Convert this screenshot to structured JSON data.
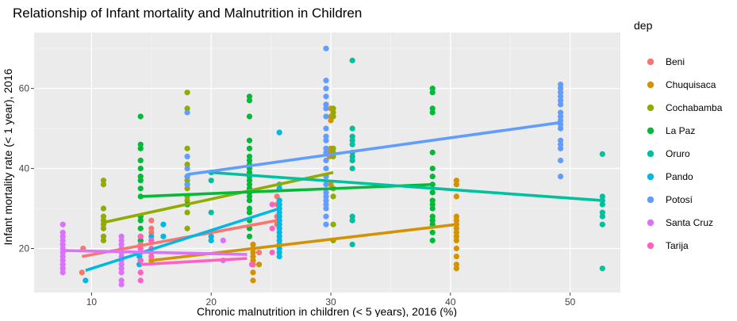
{
  "chart_data": {
    "type": "scatter",
    "title": "Relationship of Infant mortality and Malnutrition in Children",
    "xlabel": "Chronic malnutrition in children (< 5 years), 2016 (%)",
    "ylabel": "Infant mortality rate (< 1 year), 2016",
    "xlim": [
      5.2,
      54.2
    ],
    "ylim": [
      9,
      74
    ],
    "x_ticks": [
      10,
      20,
      30,
      40,
      50
    ],
    "y_ticks": [
      20,
      40,
      60
    ],
    "grid": true,
    "legend_title": "dep",
    "legend_position": "right",
    "series": [
      {
        "name": "Beni",
        "color": "#F8766D",
        "points": [
          [
            9.2,
            14
          ],
          [
            9.3,
            20
          ],
          [
            14.1,
            21
          ],
          [
            14.1,
            22
          ],
          [
            15,
            24
          ],
          [
            15,
            25
          ],
          [
            15,
            27
          ],
          [
            25.5,
            26
          ],
          [
            25.5,
            28
          ],
          [
            25.5,
            31
          ],
          [
            25.5,
            33
          ],
          [
            24,
            19
          ]
        ],
        "trend": [
          [
            9.2,
            18
          ],
          [
            25.5,
            27
          ]
        ]
      },
      {
        "name": "Chuquisaca",
        "color": "#D39200",
        "points": [
          [
            14,
            16
          ],
          [
            15,
            17
          ],
          [
            15,
            19
          ],
          [
            23.5,
            12
          ],
          [
            23.5,
            14
          ],
          [
            23.5,
            16
          ],
          [
            23.5,
            17
          ],
          [
            23.5,
            18
          ],
          [
            23.5,
            19
          ],
          [
            23.5,
            20
          ],
          [
            23.5,
            21
          ],
          [
            24,
            16
          ],
          [
            29.9,
            43
          ],
          [
            29.9,
            44
          ],
          [
            30,
            36
          ],
          [
            30,
            45
          ],
          [
            30,
            52
          ],
          [
            30,
            53
          ],
          [
            30,
            55
          ],
          [
            40.5,
            15
          ],
          [
            40.5,
            16
          ],
          [
            40.5,
            18
          ],
          [
            40.5,
            20
          ],
          [
            40.5,
            22
          ],
          [
            40.5,
            23
          ],
          [
            40.5,
            24
          ],
          [
            40.5,
            25
          ],
          [
            40.5,
            26
          ],
          [
            40.5,
            27
          ],
          [
            40.5,
            28
          ],
          [
            40.5,
            33
          ],
          [
            40.5,
            36
          ],
          [
            40.5,
            37
          ]
        ],
        "trend": [
          [
            15,
            17
          ],
          [
            40.5,
            26
          ]
        ]
      },
      {
        "name": "Cochabamba",
        "color": "#93AA00",
        "points": [
          [
            11,
            22
          ],
          [
            11,
            23
          ],
          [
            11,
            25
          ],
          [
            11,
            26
          ],
          [
            11,
            27
          ],
          [
            11,
            28
          ],
          [
            11,
            30
          ],
          [
            11,
            36
          ],
          [
            11,
            37
          ],
          [
            18,
            25
          ],
          [
            18,
            29
          ],
          [
            18,
            31
          ],
          [
            18,
            32
          ],
          [
            18,
            33
          ],
          [
            18,
            35
          ],
          [
            18,
            37
          ],
          [
            18,
            38
          ],
          [
            18,
            41
          ],
          [
            18,
            45
          ],
          [
            18,
            55
          ],
          [
            18,
            59
          ],
          [
            30.2,
            22
          ],
          [
            30.2,
            26
          ],
          [
            30.2,
            33
          ],
          [
            30.2,
            35
          ],
          [
            30.2,
            43
          ],
          [
            30.2,
            44
          ],
          [
            30.2,
            45
          ],
          [
            30.2,
            53
          ],
          [
            30.2,
            54
          ],
          [
            30.2,
            55
          ]
        ],
        "trend": [
          [
            11,
            26.5
          ],
          [
            30.2,
            39
          ]
        ]
      },
      {
        "name": "La Paz",
        "color": "#00BA38",
        "points": [
          [
            14.1,
            17
          ],
          [
            14.1,
            20
          ],
          [
            14.1,
            22
          ],
          [
            14.1,
            23
          ],
          [
            14.1,
            25
          ],
          [
            14.1,
            27
          ],
          [
            14.1,
            28
          ],
          [
            14.1,
            33
          ],
          [
            14.1,
            35
          ],
          [
            14.1,
            37
          ],
          [
            14.1,
            38
          ],
          [
            14.1,
            40
          ],
          [
            14.1,
            42
          ],
          [
            14.1,
            45
          ],
          [
            14.1,
            46
          ],
          [
            14.1,
            53
          ],
          [
            23.2,
            23
          ],
          [
            23.2,
            25
          ],
          [
            23.2,
            27
          ],
          [
            23.2,
            29
          ],
          [
            23.2,
            30
          ],
          [
            23.2,
            32
          ],
          [
            23.2,
            33
          ],
          [
            23.2,
            34
          ],
          [
            23.2,
            35
          ],
          [
            23.2,
            36
          ],
          [
            23.2,
            37
          ],
          [
            23.2,
            38
          ],
          [
            23.2,
            39
          ],
          [
            23.2,
            40
          ],
          [
            23.2,
            41
          ],
          [
            23.2,
            42
          ],
          [
            23.2,
            43
          ],
          [
            23.2,
            45
          ],
          [
            23.2,
            47
          ],
          [
            23.2,
            53
          ],
          [
            23.2,
            57
          ],
          [
            23.2,
            58
          ],
          [
            18,
            31
          ],
          [
            18,
            36
          ],
          [
            38.5,
            22
          ],
          [
            38.5,
            24
          ],
          [
            38.5,
            26
          ],
          [
            38.5,
            27
          ],
          [
            38.5,
            28
          ],
          [
            38.5,
            30
          ],
          [
            38.5,
            31
          ],
          [
            38.5,
            32
          ],
          [
            38.5,
            34
          ],
          [
            38.5,
            36
          ],
          [
            38.5,
            38
          ],
          [
            38.5,
            40
          ],
          [
            38.5,
            44
          ],
          [
            38.5,
            54
          ],
          [
            38.5,
            55
          ],
          [
            38.5,
            59
          ],
          [
            38.5,
            60
          ]
        ],
        "trend": [
          [
            14.1,
            33
          ],
          [
            38.5,
            36
          ]
        ]
      },
      {
        "name": "Oruro",
        "color": "#00C19F",
        "points": [
          [
            20,
            29
          ],
          [
            20,
            37
          ],
          [
            20,
            39
          ],
          [
            31.8,
            21
          ],
          [
            31.8,
            27
          ],
          [
            31.8,
            28
          ],
          [
            31.8,
            40
          ],
          [
            31.8,
            42
          ],
          [
            31.8,
            43
          ],
          [
            31.8,
            44
          ],
          [
            31.8,
            46
          ],
          [
            31.8,
            47
          ],
          [
            31.8,
            48
          ],
          [
            31.8,
            50
          ],
          [
            31.8,
            67
          ],
          [
            52.7,
            15
          ],
          [
            52.7,
            26
          ],
          [
            52.7,
            28
          ],
          [
            52.7,
            29
          ],
          [
            52.7,
            31
          ],
          [
            52.7,
            32
          ],
          [
            52.7,
            33
          ],
          [
            52.7,
            43.6
          ]
        ],
        "trend": [
          [
            20,
            39
          ],
          [
            52.7,
            32
          ]
        ]
      },
      {
        "name": "Pando",
        "color": "#00B9E3",
        "points": [
          [
            9.5,
            12
          ],
          [
            14,
            16
          ],
          [
            14,
            18
          ],
          [
            15,
            22
          ],
          [
            15,
            23
          ],
          [
            16,
            23
          ],
          [
            16,
            26
          ],
          [
            20,
            22
          ],
          [
            20,
            23
          ],
          [
            25.7,
            18
          ],
          [
            25.7,
            19
          ],
          [
            25.7,
            20
          ],
          [
            25.7,
            21
          ],
          [
            25.7,
            22
          ],
          [
            25.7,
            23
          ],
          [
            25.7,
            24
          ],
          [
            25.7,
            25
          ],
          [
            25.7,
            26
          ],
          [
            25.7,
            27
          ],
          [
            25.7,
            28
          ],
          [
            25.7,
            29
          ],
          [
            25.7,
            30
          ],
          [
            25.7,
            31
          ],
          [
            25.7,
            32
          ],
          [
            25.7,
            35
          ],
          [
            25.7,
            36
          ],
          [
            25.7,
            49
          ]
        ],
        "trend": [
          [
            9.5,
            14.5
          ],
          [
            25.7,
            30
          ]
        ]
      },
      {
        "name": "Potosí",
        "color": "#619CFF",
        "points": [
          [
            18,
            36
          ],
          [
            18,
            38
          ],
          [
            18,
            40
          ],
          [
            18,
            43
          ],
          [
            18,
            54
          ],
          [
            29.6,
            26
          ],
          [
            29.6,
            28
          ],
          [
            29.6,
            30
          ],
          [
            29.6,
            31
          ],
          [
            29.6,
            32
          ],
          [
            29.6,
            33
          ],
          [
            29.6,
            34
          ],
          [
            29.6,
            36
          ],
          [
            29.6,
            38
          ],
          [
            29.6,
            40
          ],
          [
            29.6,
            42
          ],
          [
            29.6,
            44
          ],
          [
            29.6,
            45
          ],
          [
            29.6,
            47
          ],
          [
            29.6,
            48
          ],
          [
            29.6,
            50
          ],
          [
            29.6,
            53
          ],
          [
            29.6,
            55
          ],
          [
            29.6,
            56
          ],
          [
            29.6,
            58
          ],
          [
            29.6,
            60
          ],
          [
            29.6,
            62
          ],
          [
            29.6,
            70
          ],
          [
            49.2,
            38
          ],
          [
            49.2,
            42
          ],
          [
            49.2,
            45
          ],
          [
            49.2,
            46
          ],
          [
            49.2,
            47
          ],
          [
            49.2,
            50
          ],
          [
            49.2,
            51
          ],
          [
            49.2,
            52
          ],
          [
            49.2,
            53
          ],
          [
            49.2,
            54
          ],
          [
            49.2,
            56
          ],
          [
            49.2,
            57
          ],
          [
            49.2,
            58
          ],
          [
            49.2,
            59
          ],
          [
            49.2,
            60
          ],
          [
            49.2,
            61
          ]
        ],
        "trend": [
          [
            18,
            38.5
          ],
          [
            49.2,
            51.5
          ]
        ]
      },
      {
        "name": "Santa Cruz",
        "color": "#DB72FB",
        "points": [
          [
            7.6,
            14
          ],
          [
            7.6,
            15
          ],
          [
            7.6,
            16
          ],
          [
            7.6,
            17
          ],
          [
            7.6,
            18
          ],
          [
            7.6,
            19
          ],
          [
            7.6,
            20
          ],
          [
            7.6,
            21
          ],
          [
            7.6,
            22
          ],
          [
            7.6,
            23
          ],
          [
            7.6,
            24
          ],
          [
            7.6,
            26
          ],
          [
            12.5,
            11
          ],
          [
            12.5,
            12
          ],
          [
            12.5,
            14
          ],
          [
            12.5,
            15
          ],
          [
            12.5,
            16
          ],
          [
            12.5,
            17
          ],
          [
            12.5,
            18
          ],
          [
            12.5,
            19
          ],
          [
            12.5,
            20
          ],
          [
            12.5,
            21
          ],
          [
            12.5,
            22
          ],
          [
            12.5,
            23
          ],
          [
            21,
            17
          ],
          [
            21,
            22
          ]
        ],
        "trend": [
          [
            7.6,
            19.5
          ],
          [
            23,
            18.5
          ]
        ]
      },
      {
        "name": "Tarija",
        "color": "#FF61C3",
        "points": [
          [
            14.1,
            12
          ],
          [
            14.1,
            14
          ],
          [
            14.1,
            17
          ],
          [
            14.1,
            19
          ],
          [
            14.1,
            20
          ],
          [
            14.1,
            21
          ],
          [
            14.1,
            23
          ],
          [
            15,
            18
          ],
          [
            15,
            20
          ],
          [
            15,
            22
          ],
          [
            23.4,
            16
          ],
          [
            25.1,
            19
          ],
          [
            25.1,
            25
          ],
          [
            25.1,
            31
          ]
        ],
        "trend": [
          [
            14.1,
            16
          ],
          [
            23,
            17.5
          ]
        ]
      }
    ]
  }
}
